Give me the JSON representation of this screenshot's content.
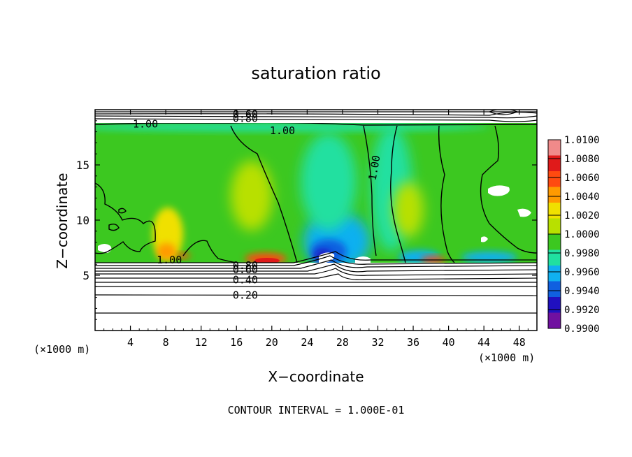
{
  "chart_data": {
    "type": "heatmap",
    "title": "saturation ratio",
    "xlabel": "X−coordinate",
    "ylabel": "Z−coordinate",
    "x_unit_left": "(×1000 m)",
    "x_unit_right": "(×1000 m)",
    "xlim": [
      0,
      50
    ],
    "ylim": [
      0,
      20
    ],
    "x_ticks": [
      4,
      8,
      12,
      16,
      20,
      24,
      28,
      32,
      36,
      40,
      44,
      48
    ],
    "y_ticks": [
      5,
      10,
      15
    ],
    "footer": "CONTOUR INTERVAL = 1.000E-01",
    "colorbar": {
      "labels": [
        "1.0100",
        "1.0080",
        "1.0060",
        "1.0040",
        "1.0020",
        "1.0000",
        "0.9980",
        "0.9960",
        "0.9940",
        "0.9920",
        "0.9900"
      ],
      "colors": [
        "#f08a8a",
        "#e01a1a",
        "#ff4a10",
        "#ff9a00",
        "#f0e000",
        "#b8e000",
        "#3cc820",
        "#20e0a0",
        "#10b0f0",
        "#1060e0",
        "#2010c0",
        "#7010a0"
      ]
    },
    "contour_labels": [
      {
        "text": "0.60",
        "x": 17.0,
        "y": 19.6
      },
      {
        "text": "0.80",
        "x": 17.0,
        "y": 19.2
      },
      {
        "text": "1.00",
        "x": 5.7,
        "y": 18.7
      },
      {
        "text": "1.00",
        "x": 21.2,
        "y": 18.1
      },
      {
        "text": "1.00",
        "x": 32.0,
        "y": 15.0
      },
      {
        "text": "1.00",
        "x": 8.4,
        "y": 6.4
      },
      {
        "text": "0.80",
        "x": 17.0,
        "y": 5.9
      },
      {
        "text": "0.60",
        "x": 17.0,
        "y": 5.5
      },
      {
        "text": "0.40",
        "x": 17.0,
        "y": 4.6
      },
      {
        "text": "0.20",
        "x": 17.0,
        "y": 3.2
      }
    ]
  }
}
